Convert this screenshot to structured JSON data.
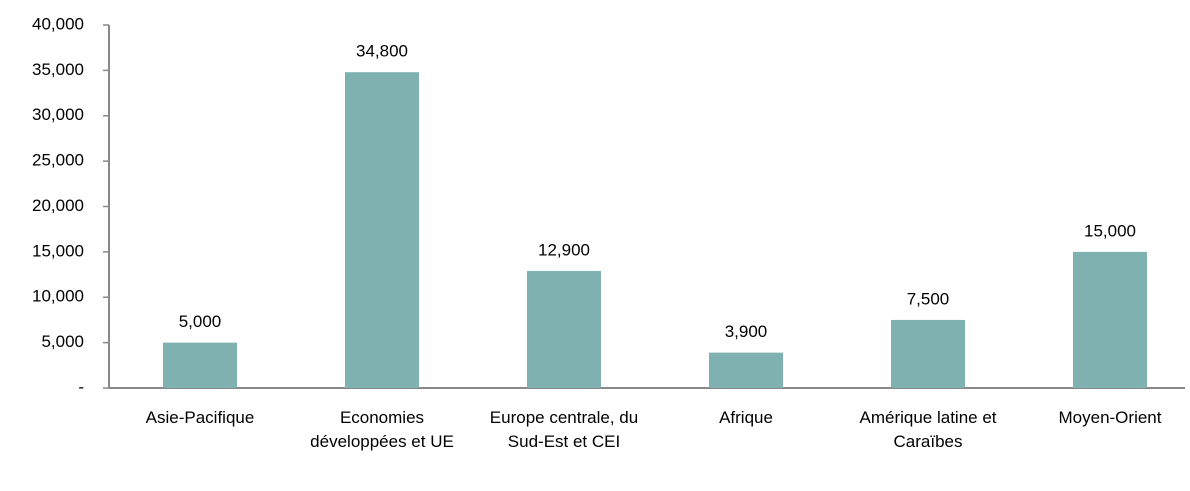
{
  "chart_data": {
    "type": "bar",
    "categories": [
      "Asie-Pacifique",
      "Economies développées et UE",
      "Europe centrale, du Sud-Est et CEI",
      "Afrique",
      "Amérique latine et Caraïbes",
      "Moyen-Orient"
    ],
    "values": [
      5000,
      34800,
      12900,
      3900,
      7500,
      15000
    ],
    "value_labels": [
      "5,000",
      "34,800",
      "12,900",
      "3,900",
      "7,500",
      "15,000"
    ],
    "color": "#7fb1b1",
    "ylim": [
      0,
      40000
    ],
    "yticks": [
      {
        "value": 0,
        "label": "-"
      },
      {
        "value": 5000,
        "label": "5,000"
      },
      {
        "value": 10000,
        "label": "10,000"
      },
      {
        "value": 15000,
        "label": "15,000"
      },
      {
        "value": 20000,
        "label": "20,000"
      },
      {
        "value": 25000,
        "label": "25,000"
      },
      {
        "value": 30000,
        "label": "30,000"
      },
      {
        "value": 35000,
        "label": "35,000"
      },
      {
        "value": 40000,
        "label": "40,000"
      }
    ],
    "grid": false
  }
}
